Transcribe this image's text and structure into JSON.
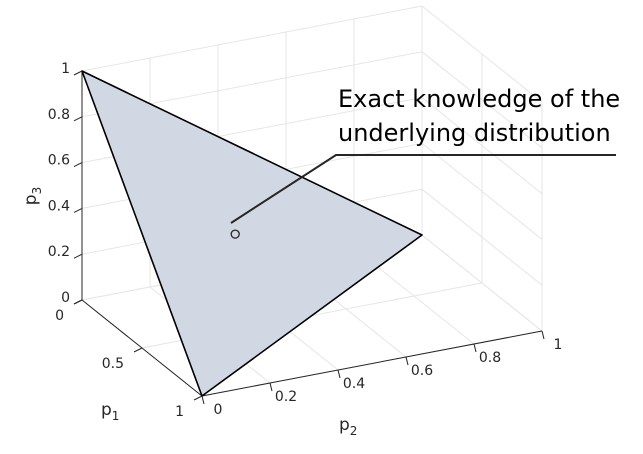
{
  "chart_data": {
    "type": "3d-simplex",
    "title": "",
    "xlabel": "p",
    "xlabel_sub": "1",
    "ylabel": "p",
    "ylabel_sub": "2",
    "zlabel": "p",
    "zlabel_sub": "3",
    "xlim": [
      0,
      1
    ],
    "ylim": [
      0,
      1
    ],
    "zlim": [
      0,
      1
    ],
    "x_ticks": [
      "0",
      "0.5",
      "1"
    ],
    "y_ticks": [
      "0",
      "0.2",
      "0.4",
      "0.6",
      "0.8",
      "1"
    ],
    "z_ticks": [
      "0",
      "0.2",
      "0.4",
      "0.6",
      "0.8",
      "1"
    ],
    "grid": true,
    "simplex": {
      "vertices": [
        [
          1,
          0,
          0
        ],
        [
          0,
          1,
          0
        ],
        [
          0,
          0,
          1
        ]
      ],
      "fill_color": "#d2d8e3",
      "edge_color": "#000000"
    },
    "point": {
      "p1": 0.333,
      "p2": 0.333,
      "p3": 0.333,
      "marker": "open-circle"
    },
    "annotation": {
      "lines": [
        "Exact knowledge of the",
        "underlying distribution"
      ]
    }
  }
}
